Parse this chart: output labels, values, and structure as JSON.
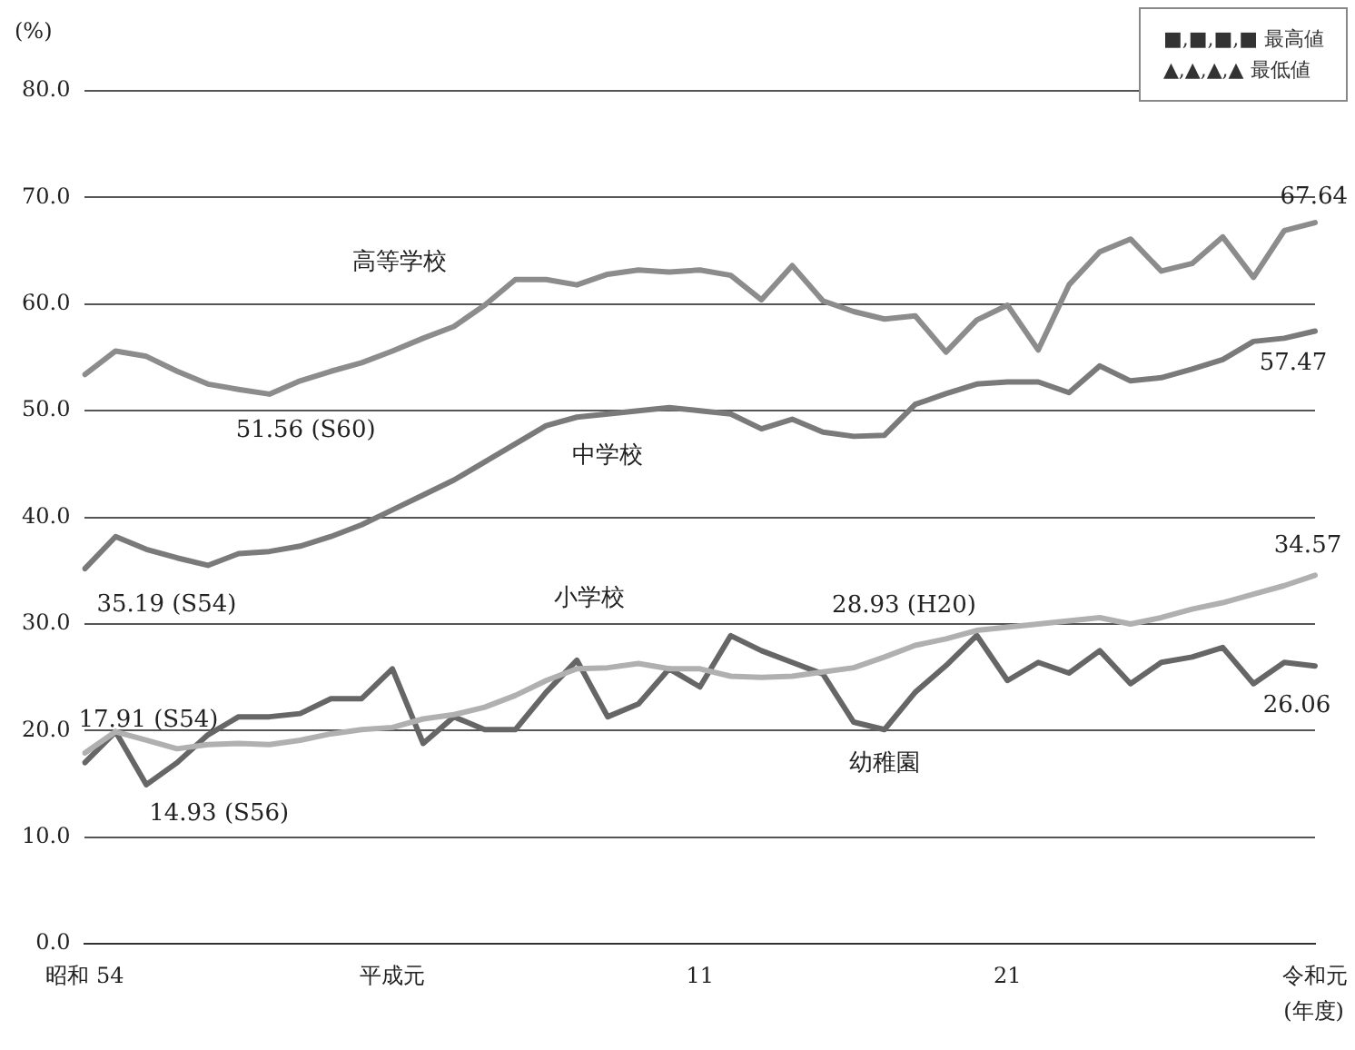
{
  "chart_data": {
    "type": "line",
    "xlabel": "(年度)",
    "ylabel": "(%)",
    "categories": [
      "昭和 54",
      null,
      null,
      null,
      null,
      null,
      null,
      null,
      null,
      null,
      "平成元",
      null,
      null,
      null,
      null,
      null,
      null,
      null,
      null,
      null,
      "11",
      null,
      null,
      null,
      null,
      null,
      null,
      null,
      null,
      null,
      "21",
      null,
      null,
      null,
      null,
      null,
      null,
      null,
      null,
      null,
      "令和元"
    ],
    "series": [
      {
        "name": "高等学校",
        "color": "#8c8c8c",
        "values": [
          53.4,
          55.6,
          55.1,
          53.7,
          52.5,
          52.0,
          51.56,
          52.8,
          53.7,
          54.5,
          55.6,
          56.8,
          57.9,
          59.9,
          62.3,
          62.3,
          61.8,
          62.8,
          63.2,
          63.0,
          63.2,
          62.7,
          60.4,
          63.6,
          60.3,
          59.3,
          58.6,
          58.9,
          55.5,
          58.5,
          59.9,
          55.7,
          61.8,
          64.9,
          66.1,
          63.1,
          63.8,
          66.3,
          62.5,
          66.9,
          67.64
        ]
      },
      {
        "name": "中学校",
        "color": "#7a7a7a",
        "values": [
          35.19,
          38.2,
          37.0,
          36.2,
          35.5,
          36.6,
          36.8,
          37.3,
          38.2,
          39.3,
          40.7,
          42.1,
          43.5,
          45.2,
          46.9,
          48.6,
          49.4,
          49.7,
          50.0,
          50.3,
          50.0,
          49.7,
          48.3,
          49.2,
          48.0,
          47.6,
          47.7,
          50.6,
          51.6,
          52.5,
          52.7,
          52.7,
          51.7,
          54.2,
          52.8,
          53.1,
          53.9,
          54.8,
          56.5,
          56.8,
          57.47
        ]
      },
      {
        "name": "小学校",
        "color": "#b0b0b0",
        "values": [
          17.91,
          19.9,
          19.1,
          18.3,
          18.7,
          18.8,
          18.7,
          19.1,
          19.7,
          20.1,
          20.3,
          21.1,
          21.5,
          22.2,
          23.3,
          24.7,
          25.8,
          25.9,
          26.3,
          25.8,
          25.8,
          25.1,
          25.0,
          25.1,
          25.5,
          25.9,
          26.9,
          28.0,
          28.6,
          29.4,
          29.7,
          30.0,
          30.3,
          30.6,
          30.0,
          30.6,
          31.4,
          32.0,
          32.8,
          33.6,
          34.57
        ]
      },
      {
        "name": "幼稚園",
        "color": "#666666",
        "values": [
          17.0,
          19.9,
          14.93,
          17.0,
          19.6,
          21.3,
          21.3,
          21.6,
          23.0,
          23.0,
          25.8,
          18.8,
          21.3,
          20.1,
          20.1,
          23.6,
          26.6,
          21.3,
          22.5,
          25.8,
          24.1,
          28.9,
          27.5,
          26.4,
          25.3,
          20.8,
          20.1,
          23.6,
          26.1,
          28.93,
          24.7,
          26.4,
          25.4,
          27.5,
          24.4,
          26.4,
          26.9,
          27.8,
          24.4,
          26.4,
          26.06
        ]
      }
    ],
    "ylim": [
      0,
      80
    ],
    "yticks": [
      {
        "value": 0,
        "label": "0.0"
      },
      {
        "value": 10,
        "label": "10.0"
      },
      {
        "value": 20,
        "label": "20.0"
      },
      {
        "value": 30,
        "label": "30.0"
      },
      {
        "value": 40,
        "label": "40.0"
      },
      {
        "value": 50,
        "label": "50.0"
      },
      {
        "value": 60,
        "label": "60.0"
      },
      {
        "value": 70,
        "label": "70.0"
      },
      {
        "value": 80,
        "label": "80.0"
      }
    ],
    "grid": "y",
    "legend": false,
    "marker": "none",
    "line_style": "solid",
    "annotations": [
      "51.56 (S60)",
      "35.19 (S54)",
      "17.91 (S54)",
      "14.93 (S56)",
      "28.93 (H20)",
      "67.64",
      "57.47",
      "34.57",
      "26.06",
      "■,■,■,■ 最高値",
      "▲,▲,▲,▲ 最低値"
    ]
  }
}
